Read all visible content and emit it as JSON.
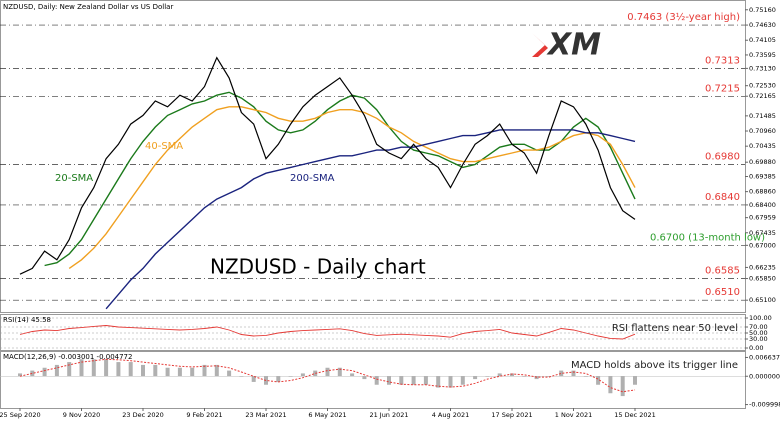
{
  "logo": "XM",
  "chart_data": [
    {
      "type": "line",
      "title": "NZDUSD, Daily:  New Zealand Dollar vs US Dollar",
      "annotation": "NZDUSD - Daily chart",
      "categories": [
        "25 Sep 2020",
        null,
        null,
        null,
        null,
        "9 Nov 2020",
        null,
        null,
        null,
        null,
        "23 Dec 2020",
        null,
        null,
        null,
        null,
        "9 Feb 2021",
        null,
        null,
        null,
        null,
        "23 Mar 2021",
        null,
        null,
        null,
        null,
        "6 May 2021",
        null,
        null,
        null,
        null,
        "21 Jun 2021",
        null,
        null,
        null,
        null,
        "4 Aug 2021",
        null,
        null,
        null,
        null,
        "17 Sep 2021",
        null,
        null,
        null,
        null,
        "1 Nov 2021",
        null,
        null,
        null,
        null,
        "15 Dec 2021"
      ],
      "values": [
        0.66,
        0.662,
        0.668,
        0.665,
        0.672,
        0.683,
        0.69,
        0.7,
        0.705,
        0.712,
        0.715,
        0.72,
        0.718,
        0.722,
        0.72,
        0.725,
        0.735,
        0.728,
        0.716,
        0.712,
        0.7,
        0.705,
        0.712,
        0.718,
        0.722,
        0.725,
        0.728,
        0.722,
        0.715,
        0.705,
        0.702,
        0.7,
        0.705,
        0.7,
        0.697,
        0.69,
        0.698,
        0.705,
        0.708,
        0.712,
        0.705,
        0.702,
        0.695,
        0.708,
        0.72,
        0.718,
        0.712,
        0.703,
        0.69,
        0.682,
        0.679
      ],
      "color": "#000000",
      "ylim": [
        0.6476,
        0.7536
      ],
      "yticks": [
        {
          "value": 0.7516,
          "label": "0.75160"
        },
        {
          "value": 0.7463,
          "label": "0.74630"
        },
        {
          "value": 0.74105,
          "label": "0.74105"
        },
        {
          "value": 0.73595,
          "label": "0.73595"
        },
        {
          "value": 0.7313,
          "label": "0.73130"
        },
        {
          "value": 0.7253,
          "label": "0.72530"
        },
        {
          "value": 0.72165,
          "label": "0.72165"
        },
        {
          "value": 0.71485,
          "label": "0.71485"
        },
        {
          "value": 0.7096,
          "label": "0.70960"
        },
        {
          "value": 0.70435,
          "label": "0.70435"
        },
        {
          "value": 0.6988,
          "label": "0.69880"
        },
        {
          "value": 0.69385,
          "label": "0.69385"
        },
        {
          "value": 0.6886,
          "label": "0.68860"
        },
        {
          "value": 0.684,
          "label": "0.68400"
        },
        {
          "value": 0.67959,
          "label": "0.67959"
        },
        {
          "value": 0.67435,
          "label": "0.67435"
        },
        {
          "value": 0.67,
          "label": "0.67000"
        },
        {
          "value": 0.66235,
          "label": "0.66235"
        },
        {
          "value": 0.6585,
          "label": "0.65850"
        },
        {
          "value": 0.651,
          "label": "0.65100"
        }
      ],
      "levels": [
        {
          "value": 0.7463,
          "label": "0.7463 (3½-year high)",
          "color": "#e53935"
        },
        {
          "value": 0.7313,
          "label": "0.7313",
          "color": "#e53935"
        },
        {
          "value": 0.7215,
          "label": "0.7215",
          "color": "#e53935"
        },
        {
          "value": 0.698,
          "label": "0.6980",
          "color": "#e53935"
        },
        {
          "value": 0.684,
          "label": "0.6840",
          "color": "#e53935"
        },
        {
          "value": 0.67,
          "label": "0.6700 (13-month low)",
          "color": "#2e9e2e"
        },
        {
          "value": 0.6585,
          "label": "0.6585",
          "color": "#e53935"
        },
        {
          "value": 0.651,
          "label": "0.6510",
          "color": "#e53935"
        }
      ],
      "series": [
        {
          "name": "20-SMA",
          "color": "#1b7a1b",
          "values": [
            null,
            null,
            0.663,
            0.664,
            0.667,
            0.672,
            0.679,
            0.686,
            0.693,
            0.7,
            0.706,
            0.711,
            0.715,
            0.717,
            0.719,
            0.72,
            0.722,
            0.723,
            0.721,
            0.718,
            0.713,
            0.71,
            0.709,
            0.71,
            0.713,
            0.717,
            0.72,
            0.722,
            0.721,
            0.717,
            0.711,
            0.706,
            0.703,
            0.702,
            0.701,
            0.699,
            0.697,
            0.698,
            0.701,
            0.704,
            0.705,
            0.705,
            0.703,
            0.703,
            0.706,
            0.711,
            0.714,
            0.711,
            0.704,
            0.695,
            0.686
          ]
        },
        {
          "name": "40-SMA",
          "color": "#f0a020",
          "values": [
            null,
            null,
            null,
            null,
            0.662,
            0.665,
            0.669,
            0.674,
            0.68,
            0.686,
            0.692,
            0.698,
            0.703,
            0.707,
            0.711,
            0.714,
            0.717,
            0.718,
            0.718,
            0.717,
            0.716,
            0.714,
            0.713,
            0.713,
            0.714,
            0.716,
            0.717,
            0.717,
            0.716,
            0.714,
            0.711,
            0.709,
            0.706,
            0.704,
            0.702,
            0.7,
            0.699,
            0.699,
            0.7,
            0.701,
            0.702,
            0.703,
            0.703,
            0.704,
            0.706,
            0.708,
            0.709,
            0.708,
            0.705,
            0.698,
            0.69
          ]
        },
        {
          "name": "200-SMA",
          "color": "#1a237e",
          "values": [
            null,
            null,
            null,
            null,
            null,
            null,
            null,
            0.648,
            0.653,
            0.658,
            0.662,
            0.667,
            0.671,
            0.675,
            0.679,
            0.683,
            0.686,
            0.688,
            0.69,
            0.693,
            0.695,
            0.696,
            0.697,
            0.698,
            0.699,
            0.7,
            0.701,
            0.701,
            0.702,
            0.703,
            0.703,
            0.704,
            0.704,
            0.705,
            0.706,
            0.707,
            0.708,
            0.708,
            0.709,
            0.71,
            0.71,
            0.71,
            0.71,
            0.71,
            0.71,
            0.71,
            0.709,
            0.709,
            0.708,
            0.707,
            0.706
          ]
        }
      ]
    },
    {
      "type": "line",
      "title": "RSI(14) 45.58",
      "annotation": "RSI flattens near 50 level",
      "values": [
        45,
        55,
        60,
        58,
        65,
        68,
        72,
        75,
        70,
        68,
        66,
        64,
        62,
        60,
        62,
        65,
        70,
        60,
        45,
        40,
        42,
        50,
        55,
        58,
        60,
        62,
        64,
        58,
        48,
        42,
        44,
        46,
        44,
        42,
        40,
        36,
        48,
        55,
        58,
        62,
        50,
        45,
        40,
        52,
        65,
        60,
        50,
        40,
        32,
        30,
        46
      ],
      "color": "#e53935",
      "ylim": [
        0,
        100
      ],
      "yticks": [
        {
          "value": 100,
          "label": "100.00"
        },
        {
          "value": 70,
          "label": "70.00"
        },
        {
          "value": 50,
          "label": "50.00"
        },
        {
          "value": 30,
          "label": "30.00"
        },
        {
          "value": 0,
          "label": "0.00"
        }
      ],
      "grid": true
    },
    {
      "type": "bar",
      "title": "MACD(12,26,9) -0.003001 -0.004772",
      "annotation": "MACD holds above its trigger line",
      "values": [
        0.001,
        0.002,
        0.003,
        0.004,
        0.005,
        0.006,
        0.006,
        0.006,
        0.005,
        0.005,
        0.004,
        0.004,
        0.003,
        0.003,
        0.003,
        0.004,
        0.004,
        0.002,
        0,
        -0.002,
        -0.003,
        -0.002,
        0,
        0.001,
        0.002,
        0.003,
        0.003,
        0.001,
        -0.001,
        -0.003,
        -0.003,
        -0.003,
        -0.003,
        -0.003,
        -0.004,
        -0.004,
        -0.003,
        -0.001,
        0,
        0.001,
        0.001,
        0,
        -0.001,
        0,
        0.002,
        0.002,
        0,
        -0.003,
        -0.006,
        -0.007,
        -0.003
      ],
      "color": "#b0b0b0",
      "signal": [
        0,
        0.001,
        0.002,
        0.003,
        0.004,
        0.005,
        0.0055,
        0.006,
        0.0058,
        0.0055,
        0.005,
        0.0045,
        0.004,
        0.0035,
        0.0033,
        0.0035,
        0.0037,
        0.003,
        0.0015,
        0,
        -0.0015,
        -0.002,
        -0.0015,
        -0.0005,
        0.001,
        0.002,
        0.0025,
        0.002,
        0.0005,
        -0.001,
        -0.002,
        -0.0028,
        -0.003,
        -0.003,
        -0.0035,
        -0.0038,
        -0.0035,
        -0.0025,
        -0.001,
        0,
        0.0008,
        0.0005,
        -0.0003,
        -0.0003,
        0.001,
        0.0015,
        0.001,
        -0.001,
        -0.004,
        -0.0055,
        -0.0048
      ],
      "signal_color": "#e53935",
      "ylim": [
        -0.0105,
        0.0075
      ],
      "yticks": [
        {
          "value": 0.006637,
          "label": "0.006637"
        },
        {
          "value": 0,
          "label": "0.000000"
        },
        {
          "value": -0.009998,
          "label": "-0.009998"
        }
      ]
    }
  ]
}
